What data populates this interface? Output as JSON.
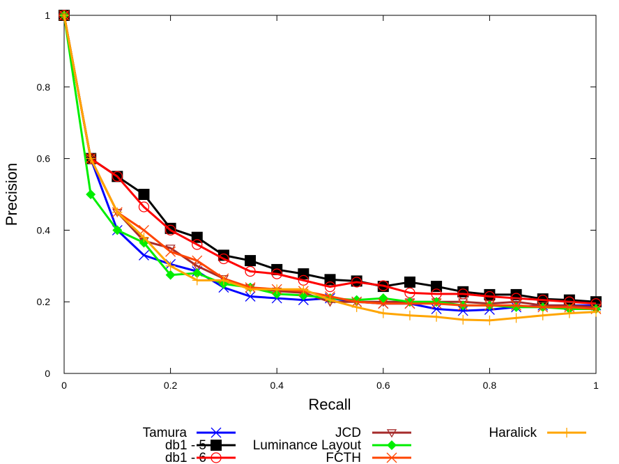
{
  "chart_data": {
    "type": "line",
    "xlabel": "Recall",
    "ylabel": "Precision",
    "xlim": [
      0,
      1
    ],
    "ylim": [
      0,
      1
    ],
    "xticks": [
      "0",
      "0.2",
      "0.4",
      "0.6",
      "0.8",
      "1"
    ],
    "yticks": [
      "0",
      "0.2",
      "0.4",
      "0.6",
      "0.8",
      "1"
    ],
    "grid": false,
    "legend_position": "bottom",
    "x": [
      0,
      0.05,
      0.1,
      0.15,
      0.2,
      0.25,
      0.3,
      0.35,
      0.4,
      0.45,
      0.5,
      0.55,
      0.6,
      0.65,
      0.7,
      0.75,
      0.8,
      0.85,
      0.9,
      0.95,
      1.0
    ],
    "series": [
      {
        "name": "Tamura",
        "color": "#0000ff",
        "marker": "x",
        "values": [
          1.0,
          0.6,
          0.4,
          0.33,
          0.305,
          0.285,
          0.24,
          0.215,
          0.21,
          0.205,
          0.21,
          0.2,
          0.195,
          0.195,
          0.18,
          0.175,
          0.178,
          0.185,
          0.19,
          0.19,
          0.19
        ]
      },
      {
        "name": "db1 - 5",
        "color": "#000000",
        "marker": "filled-square",
        "values": [
          1.0,
          0.6,
          0.55,
          0.5,
          0.405,
          0.38,
          0.33,
          0.315,
          0.29,
          0.278,
          0.262,
          0.258,
          0.243,
          0.255,
          0.243,
          0.228,
          0.22,
          0.22,
          0.208,
          0.205,
          0.2
        ]
      },
      {
        "name": "db1 - 6",
        "color": "#ff0000",
        "marker": "open-circle",
        "values": [
          1.0,
          0.6,
          0.55,
          0.465,
          0.4,
          0.36,
          0.32,
          0.285,
          0.278,
          0.26,
          0.242,
          0.255,
          0.245,
          0.225,
          0.222,
          0.222,
          0.215,
          0.21,
          0.205,
          0.2,
          0.195
        ]
      },
      {
        "name": "JCD",
        "color": "#a52a2a",
        "marker": "open-triangle-down",
        "values": [
          1.0,
          0.6,
          0.45,
          0.37,
          0.35,
          0.3,
          0.265,
          0.24,
          0.23,
          0.225,
          0.2,
          0.2,
          0.2,
          0.2,
          0.2,
          0.2,
          0.195,
          0.2,
          0.19,
          0.19,
          0.185
        ]
      },
      {
        "name": "Luminance Layout",
        "color": "#00ee00",
        "marker": "filled-diamond",
        "values": [
          1.0,
          0.5,
          0.4,
          0.365,
          0.275,
          0.28,
          0.25,
          0.24,
          0.222,
          0.218,
          0.21,
          0.205,
          0.21,
          0.2,
          0.2,
          0.19,
          0.19,
          0.185,
          0.185,
          0.18,
          0.18
        ]
      },
      {
        "name": "FCTH",
        "color": "#ff4500",
        "marker": "x",
        "values": [
          1.0,
          0.6,
          0.45,
          0.4,
          0.34,
          0.315,
          0.265,
          0.24,
          0.235,
          0.23,
          0.215,
          0.2,
          0.195,
          0.195,
          0.195,
          0.19,
          0.19,
          0.19,
          0.185,
          0.185,
          0.18
        ]
      },
      {
        "name": "Haralick",
        "color": "#ffa500",
        "marker": "plus",
        "values": [
          1.0,
          0.6,
          0.45,
          0.38,
          0.3,
          0.26,
          0.26,
          0.235,
          0.235,
          0.235,
          0.205,
          0.185,
          0.168,
          0.162,
          0.158,
          0.15,
          0.148,
          0.155,
          0.162,
          0.168,
          0.172
        ]
      }
    ]
  }
}
